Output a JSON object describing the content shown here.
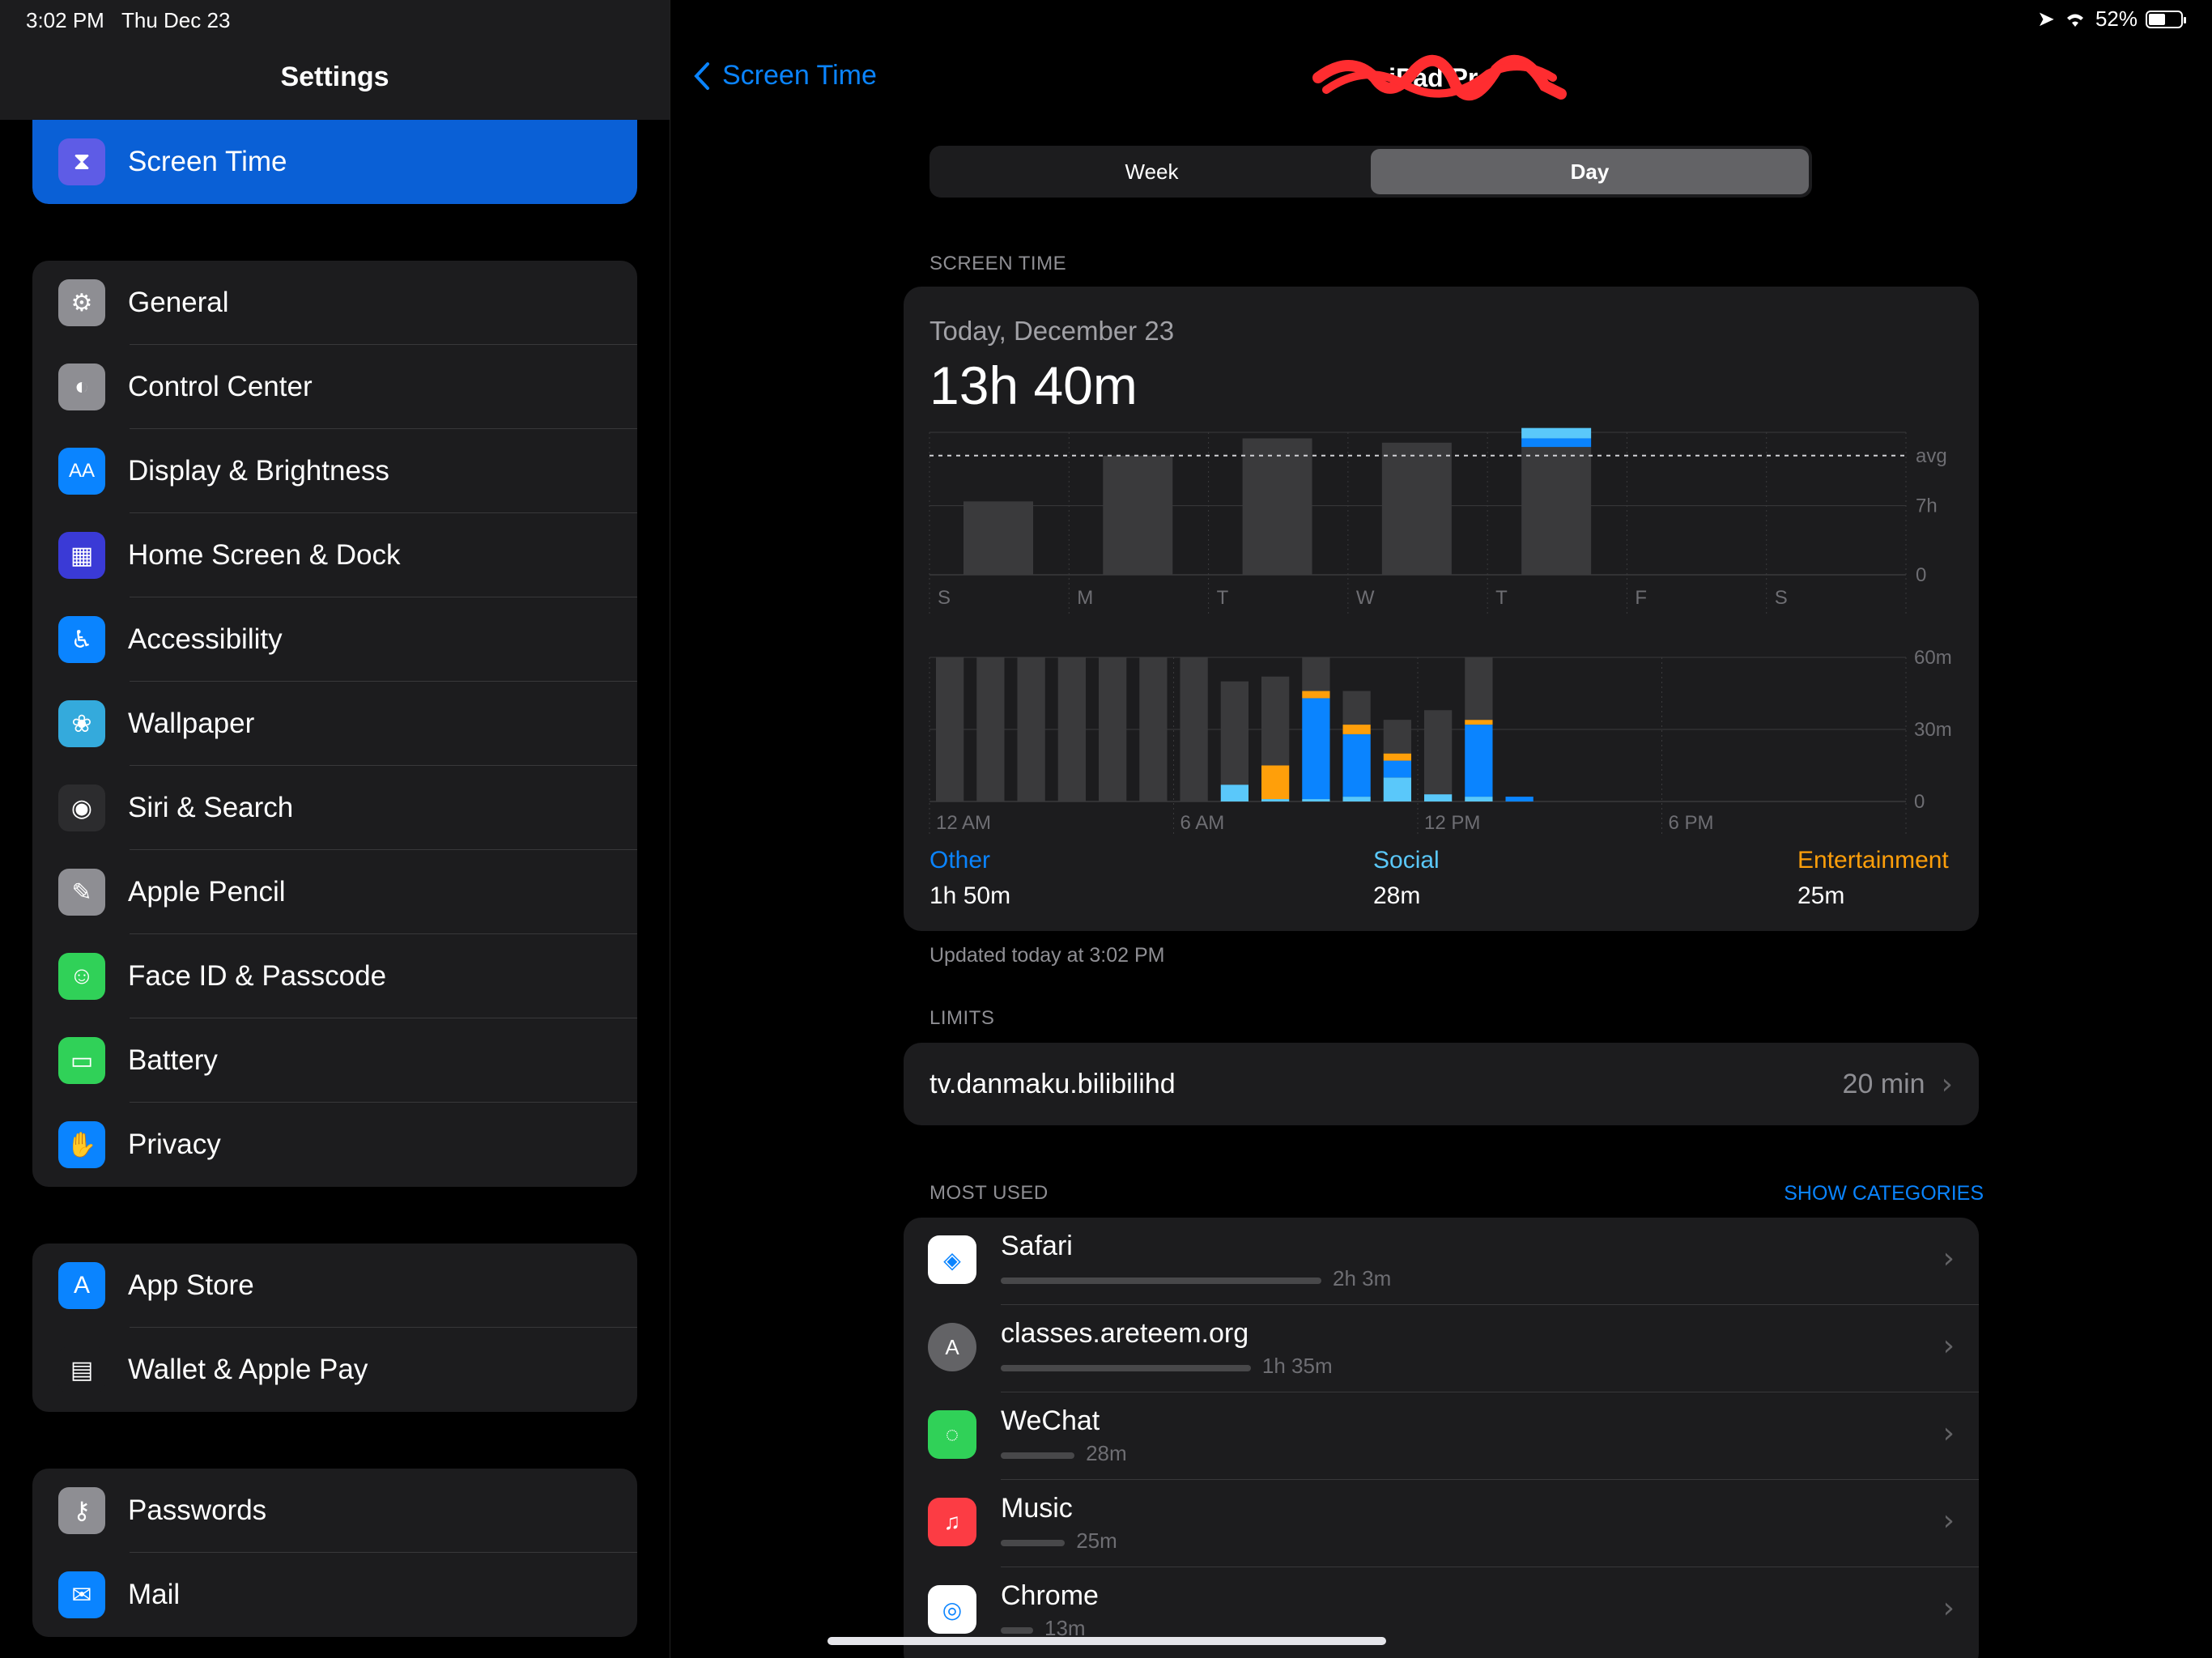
{
  "status": {
    "time": "3:02 PM",
    "date": "Thu Dec 23",
    "battery": "52%",
    "battery_level": 0.52
  },
  "sidebar": {
    "title": "Settings",
    "selected": {
      "label": "Screen Time",
      "icon": "hourglass-icon",
      "color": "#5e5ce6"
    },
    "group1": [
      {
        "label": "General",
        "icon": "gear-icon",
        "color": "#8e8e93"
      },
      {
        "label": "Control Center",
        "icon": "toggles-icon",
        "color": "#8e8e93"
      },
      {
        "label": "Display & Brightness",
        "icon": "text-size-icon",
        "color": "#0a84ff"
      },
      {
        "label": "Home Screen & Dock",
        "icon": "grid-icon",
        "color": "#3a3ad6"
      },
      {
        "label": "Accessibility",
        "icon": "accessibility-icon",
        "color": "#0a84ff"
      },
      {
        "label": "Wallpaper",
        "icon": "flower-icon",
        "color": "#34aadc"
      },
      {
        "label": "Siri & Search",
        "icon": "siri-icon",
        "color": "#2c2c2e"
      },
      {
        "label": "Apple Pencil",
        "icon": "pencil-icon",
        "color": "#8e8e93"
      },
      {
        "label": "Face ID & Passcode",
        "icon": "face-id-icon",
        "color": "#30d158"
      },
      {
        "label": "Battery",
        "icon": "battery-icon",
        "color": "#30d158"
      },
      {
        "label": "Privacy",
        "icon": "hand-icon",
        "color": "#0a84ff"
      }
    ],
    "group2": [
      {
        "label": "App Store",
        "icon": "app-store-icon",
        "color": "#0a84ff"
      },
      {
        "label": "Wallet & Apple Pay",
        "icon": "wallet-icon",
        "color": "#1c1c1e"
      }
    ],
    "group3": [
      {
        "label": "Passwords",
        "icon": "key-icon",
        "color": "#8e8e93"
      },
      {
        "label": "Mail",
        "icon": "mail-icon",
        "color": "#0a84ff"
      }
    ]
  },
  "nav": {
    "back_label": "Screen Time",
    "title": "iPad Pro"
  },
  "segments": {
    "week": "Week",
    "day": "Day",
    "active": "Day"
  },
  "screen_time": {
    "section_label": "SCREEN TIME",
    "date": "Today, December 23",
    "total": "13h 40m",
    "updated": "Updated today at 3:02 PM"
  },
  "chart_data": [
    {
      "type": "bar",
      "categories": [
        "S",
        "M",
        "T",
        "W",
        "T",
        "F",
        "S"
      ],
      "series": [
        {
          "name": "Other",
          "color": "#3a3a3c",
          "values": [
            8.5,
            13.8,
            15.8,
            15.3,
            14.8,
            0,
            0
          ]
        },
        {
          "name": "Social",
          "color": "#0a84ff",
          "values": [
            0,
            0,
            0,
            0,
            1.0,
            0,
            0
          ]
        },
        {
          "name": "Entertainment",
          "color": "#5ac8fa",
          "values": [
            0,
            0,
            0,
            0,
            1.2,
            0,
            0
          ]
        }
      ],
      "avg_value": 13.8,
      "y_ticks": [
        {
          "label": "avg",
          "value": 13.8
        },
        {
          "label": "7h",
          "value": 8
        },
        {
          "label": "0",
          "value": 0
        }
      ],
      "ylim": [
        0,
        16.5
      ]
    },
    {
      "type": "bar",
      "x_labels": [
        "12 AM",
        "6 AM",
        "12 PM",
        "6 PM"
      ],
      "y_ticks": [
        "60m",
        "30m",
        "0"
      ],
      "ylim": [
        0,
        60
      ],
      "series": [
        {
          "name": "Gray",
          "color": "#3a3a3c",
          "values": [
            60,
            60,
            60,
            60,
            60,
            60,
            60,
            50,
            52,
            60,
            46,
            34,
            38,
            60,
            0,
            0,
            0,
            0,
            0,
            0,
            0,
            0,
            0,
            0
          ]
        },
        {
          "name": "Other",
          "color": "#5ac8fa",
          "values": [
            0,
            0,
            0,
            0,
            0,
            0,
            0,
            7,
            1,
            1,
            2,
            10,
            3,
            2,
            0,
            0,
            0,
            0,
            0,
            0,
            0,
            0,
            0,
            0
          ]
        },
        {
          "name": "Social",
          "color": "#0a84ff",
          "values": [
            0,
            0,
            0,
            0,
            0,
            0,
            0,
            0,
            0,
            42,
            26,
            7,
            0,
            30,
            2,
            0,
            0,
            0,
            0,
            0,
            0,
            0,
            0,
            0
          ]
        },
        {
          "name": "Entertainment",
          "color": "#ff9f0a",
          "values": [
            0,
            0,
            0,
            0,
            0,
            0,
            0,
            0,
            14,
            3,
            4,
            3,
            0,
            2,
            0,
            0,
            0,
            0,
            0,
            0,
            0,
            0,
            0,
            0
          ]
        }
      ]
    }
  ],
  "categories": [
    {
      "name": "Other",
      "value": "1h 50m",
      "color": "#0a84ff"
    },
    {
      "name": "Social",
      "value": "28m",
      "color": "#5ac8fa"
    },
    {
      "name": "Entertainment",
      "value": "25m",
      "color": "#ff9f0a"
    }
  ],
  "limits": {
    "section_label": "LIMITS",
    "items": [
      {
        "name": "tv.danmaku.bilibilihd",
        "value": "20 min"
      }
    ]
  },
  "most_used": {
    "section_label": "MOST USED",
    "show_categories": "SHOW CATEGORIES",
    "apps": [
      {
        "name": "Safari",
        "time": "2h 3m",
        "fraction": 1.0,
        "icon": "safari-icon",
        "color": "#ffffff"
      },
      {
        "name": "classes.areteem.org",
        "time": "1h 35m",
        "fraction": 0.78,
        "icon": "letter-a-icon",
        "color": "#636366",
        "letter": "A"
      },
      {
        "name": "WeChat",
        "time": "28m",
        "fraction": 0.23,
        "icon": "wechat-icon",
        "color": "#30d158"
      },
      {
        "name": "Music",
        "time": "25m",
        "fraction": 0.2,
        "icon": "music-icon",
        "color": "#fc3c44"
      },
      {
        "name": "Chrome",
        "time": "13m",
        "fraction": 0.1,
        "icon": "chrome-icon",
        "color": "#ffffff"
      }
    ]
  }
}
